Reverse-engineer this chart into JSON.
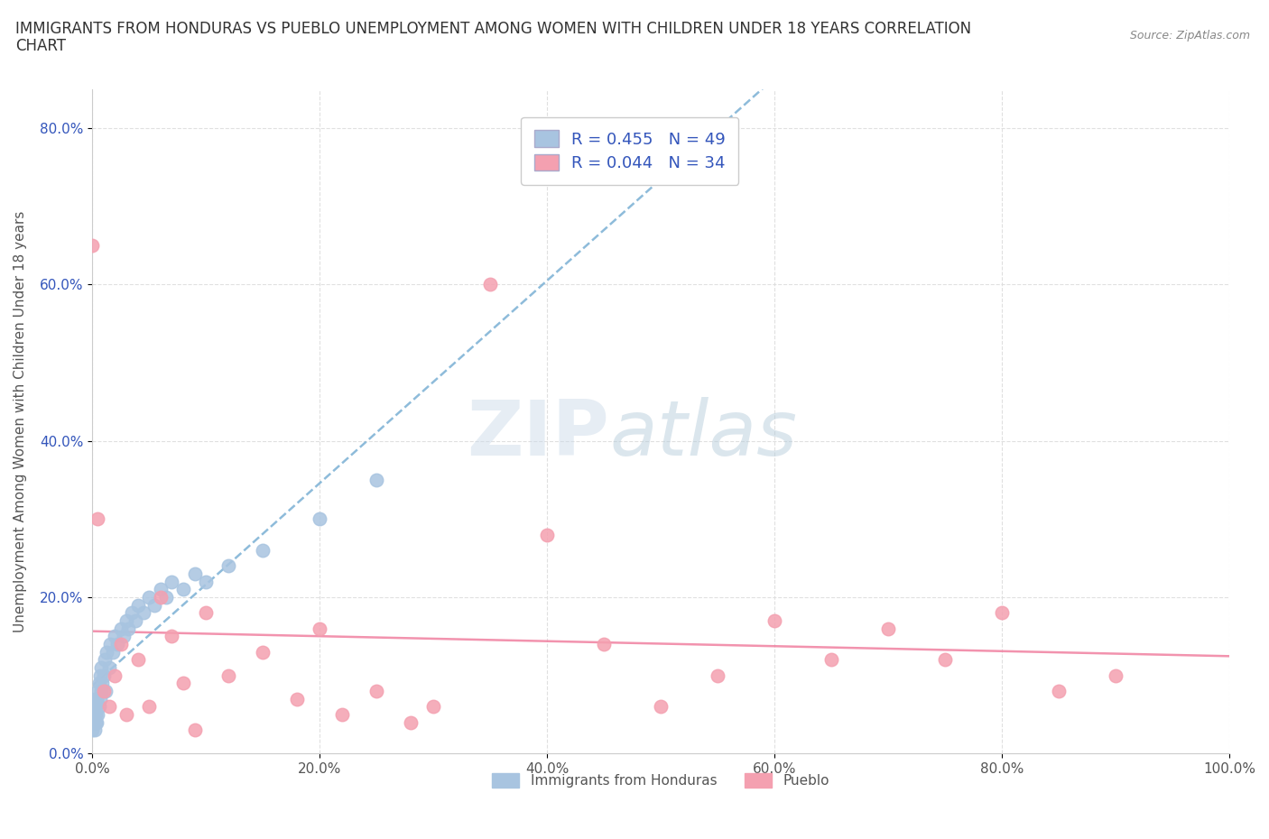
{
  "title_line1": "IMMIGRANTS FROM HONDURAS VS PUEBLO UNEMPLOYMENT AMONG WOMEN WITH CHILDREN UNDER 18 YEARS CORRELATION",
  "title_line2": "CHART",
  "source": "Source: ZipAtlas.com",
  "ylabel": "Unemployment Among Women with Children Under 18 years",
  "series": [
    {
      "label": "Immigrants from Honduras",
      "R": 0.455,
      "N": 49,
      "color": "#a8c4e0",
      "line_color": "#7ab0d4",
      "x": [
        0.0,
        0.001,
        0.001,
        0.002,
        0.002,
        0.002,
        0.003,
        0.003,
        0.003,
        0.004,
        0.004,
        0.005,
        0.005,
        0.006,
        0.006,
        0.007,
        0.007,
        0.008,
        0.008,
        0.009,
        0.01,
        0.011,
        0.012,
        0.013,
        0.015,
        0.016,
        0.018,
        0.02,
        0.022,
        0.025,
        0.028,
        0.03,
        0.032,
        0.035,
        0.038,
        0.04,
        0.045,
        0.05,
        0.055,
        0.06,
        0.065,
        0.07,
        0.08,
        0.09,
        0.1,
        0.12,
        0.15,
        0.2,
        0.25
      ],
      "y": [
        0.03,
        0.04,
        0.05,
        0.03,
        0.06,
        0.07,
        0.04,
        0.05,
        0.06,
        0.04,
        0.07,
        0.05,
        0.08,
        0.06,
        0.09,
        0.07,
        0.1,
        0.08,
        0.11,
        0.09,
        0.1,
        0.12,
        0.08,
        0.13,
        0.11,
        0.14,
        0.13,
        0.15,
        0.14,
        0.16,
        0.15,
        0.17,
        0.16,
        0.18,
        0.17,
        0.19,
        0.18,
        0.2,
        0.19,
        0.21,
        0.2,
        0.22,
        0.21,
        0.23,
        0.22,
        0.24,
        0.26,
        0.3,
        0.35
      ],
      "trend_style": "dashed"
    },
    {
      "label": "Pueblo",
      "R": 0.044,
      "N": 34,
      "color": "#f4a0b0",
      "line_color": "#f080a0",
      "x": [
        0.0,
        0.005,
        0.01,
        0.015,
        0.02,
        0.025,
        0.03,
        0.04,
        0.05,
        0.06,
        0.07,
        0.08,
        0.09,
        0.1,
        0.12,
        0.15,
        0.18,
        0.2,
        0.22,
        0.25,
        0.28,
        0.3,
        0.35,
        0.4,
        0.45,
        0.5,
        0.55,
        0.6,
        0.65,
        0.7,
        0.75,
        0.8,
        0.85,
        0.9
      ],
      "y": [
        0.65,
        0.3,
        0.08,
        0.06,
        0.1,
        0.14,
        0.05,
        0.12,
        0.06,
        0.2,
        0.15,
        0.09,
        0.03,
        0.18,
        0.1,
        0.13,
        0.07,
        0.16,
        0.05,
        0.08,
        0.04,
        0.06,
        0.6,
        0.28,
        0.14,
        0.06,
        0.1,
        0.17,
        0.12,
        0.16,
        0.12,
        0.18,
        0.08,
        0.1
      ],
      "trend_style": "solid"
    }
  ],
  "xlim": [
    0.0,
    1.0
  ],
  "ylim": [
    0.0,
    0.85
  ],
  "yticks": [
    0.0,
    0.2,
    0.4,
    0.6,
    0.8
  ],
  "yticklabels": [
    "0.0%",
    "20.0%",
    "40.0%",
    "60.0%",
    "80.0%"
  ],
  "xticks": [
    0.0,
    0.2,
    0.4,
    0.6,
    0.8,
    1.0
  ],
  "xticklabels": [
    "0.0%",
    "20.0%",
    "40.0%",
    "60.0%",
    "80.0%",
    "100.0%"
  ],
  "grid_color": "#dddddd",
  "background_color": "#ffffff",
  "watermark_zip": "ZIP",
  "watermark_atlas": "atlas",
  "watermark_color_zip": "#c8d8e8",
  "watermark_color_atlas": "#b0c8d8",
  "title_fontsize": 12,
  "axis_label_fontsize": 11,
  "tick_fontsize": 11,
  "legend_color": "#3355bb"
}
